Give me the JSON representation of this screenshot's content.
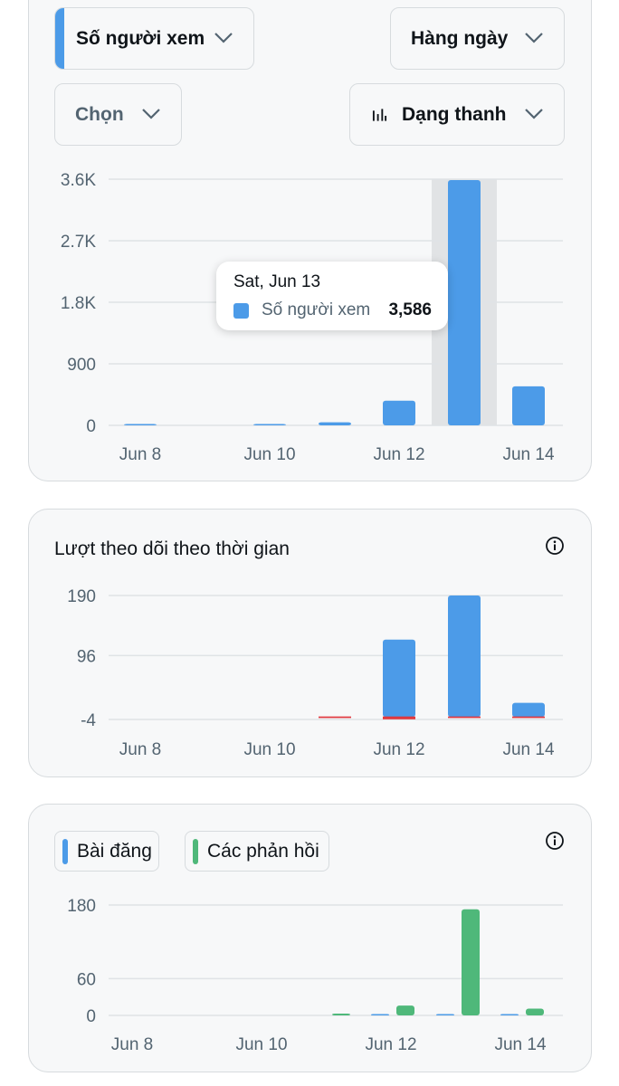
{
  "controls": {
    "metric_dropdown": "Số người xem",
    "period_dropdown": "Hàng ngày",
    "select_dropdown": "Chọn",
    "chart_type_dropdown": "Dạng thanh"
  },
  "tooltip": {
    "date": "Sat, Jun 13",
    "series": "Số người xem",
    "value": "3,586"
  },
  "follows_card": {
    "title": "Lượt theo dõi theo thời gian"
  },
  "posts_card": {
    "legend": [
      {
        "label": "Bài đăng",
        "color": "#4c9be8"
      },
      {
        "label": "Các phản hồi",
        "color": "#4fb87a"
      }
    ]
  },
  "colors": {
    "blue": "#4c9be8",
    "green": "#4fb87a",
    "red": "#e0383e",
    "highlight": "#e1e3e5"
  },
  "chart_data": [
    {
      "type": "bar",
      "categories": [
        "Jun 8",
        "Jun 9",
        "Jun 10",
        "Jun 11",
        "Jun 12",
        "Jun 13",
        "Jun 14"
      ],
      "x_tick_labels": [
        "Jun 8",
        "Jun 10",
        "Jun 12",
        "Jun 14"
      ],
      "y_ticks": [
        "0",
        "900",
        "1.8K",
        "2.7K",
        "3.6K"
      ],
      "ylim": [
        0,
        3600
      ],
      "series": [
        {
          "name": "Số người xem",
          "values": [
            10,
            0,
            15,
            45,
            360,
            3586,
            570
          ]
        }
      ],
      "highlighted_category": "Jun 13"
    },
    {
      "type": "bar",
      "title": "Lượt theo dõi theo thời gian",
      "categories": [
        "Jun 8",
        "Jun 9",
        "Jun 10",
        "Jun 11",
        "Jun 12",
        "Jun 13",
        "Jun 14"
      ],
      "x_tick_labels": [
        "Jun 8",
        "Jun 10",
        "Jun 12",
        "Jun 14"
      ],
      "y_ticks": [
        "-4",
        "96",
        "190"
      ],
      "ylim": [
        -4,
        190
      ],
      "series": [
        {
          "values": [
            0,
            0,
            0,
            0,
            121,
            190,
            22
          ]
        },
        {
          "values": [
            0,
            0,
            0,
            -1,
            -3,
            -1,
            -1
          ]
        }
      ]
    },
    {
      "type": "bar",
      "categories": [
        "Jun 8",
        "Jun 9",
        "Jun 10",
        "Jun 11",
        "Jun 12",
        "Jun 13",
        "Jun 14"
      ],
      "x_tick_labels": [
        "Jun 8",
        "Jun 10",
        "Jun 12",
        "Jun 14"
      ],
      "y_ticks": [
        "0",
        "60",
        "180"
      ],
      "ylim": [
        0,
        180
      ],
      "series": [
        {
          "name": "Bài đăng",
          "values": [
            0,
            0,
            0,
            0,
            1,
            1,
            1
          ]
        },
        {
          "name": "Các phản hồi",
          "values": [
            0,
            0,
            0,
            3,
            16,
            173,
            11
          ]
        }
      ]
    }
  ]
}
